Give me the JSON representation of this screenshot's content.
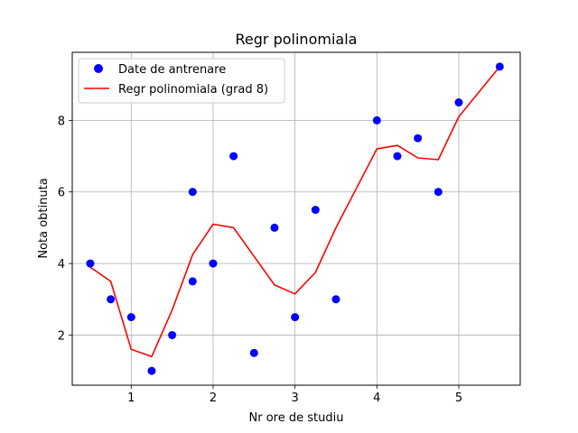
{
  "chart_data": {
    "type": "scatter",
    "title": "Regr polinomiala",
    "xlabel": "Nr ore de studiu",
    "ylabel": "Nota obtinuta",
    "xlim": [
      0.28,
      5.75
    ],
    "ylim": [
      0.6,
      9.9
    ],
    "xticks": [
      1,
      2,
      3,
      4,
      5
    ],
    "yticks": [
      2,
      4,
      6,
      8
    ],
    "grid": true,
    "legend_position": "upper-left",
    "series": [
      {
        "name": "Date de antrenare",
        "kind": "scatter",
        "color": "#0000ff",
        "x": [
          0.5,
          0.75,
          1.0,
          1.25,
          1.5,
          1.75,
          1.75,
          2.0,
          2.25,
          2.5,
          2.75,
          3.0,
          3.25,
          3.5,
          4.0,
          4.25,
          4.5,
          4.75,
          5.0,
          5.5
        ],
        "y": [
          4.0,
          3.0,
          2.5,
          1.0,
          2.0,
          3.5,
          6.0,
          4.0,
          7.0,
          1.5,
          5.0,
          2.5,
          5.5,
          3.0,
          8.0,
          7.0,
          7.5,
          6.0,
          8.5,
          9.5
        ]
      },
      {
        "name": "Regr polinomiala (grad 8)",
        "kind": "line",
        "color": "#ff0000",
        "x": [
          0.5,
          0.75,
          1.0,
          1.25,
          1.5,
          1.75,
          2.0,
          2.25,
          2.5,
          2.75,
          3.0,
          3.25,
          3.5,
          4.0,
          4.25,
          4.5,
          4.75,
          5.0,
          5.5
        ],
        "y": [
          3.9,
          3.5,
          1.6,
          1.4,
          2.7,
          4.25,
          5.1,
          5.0,
          4.2,
          3.4,
          3.15,
          3.75,
          5.0,
          7.2,
          7.3,
          6.95,
          6.9,
          8.1,
          9.5
        ]
      }
    ]
  }
}
